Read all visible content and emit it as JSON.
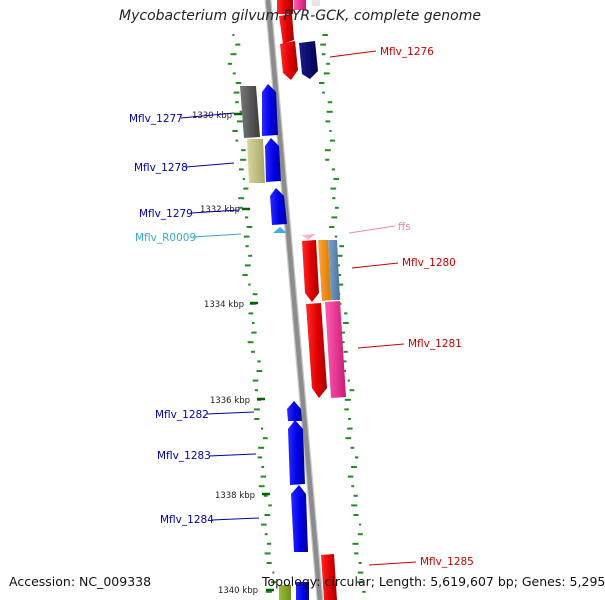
{
  "title": "Mycobacterium gilvum PYR-GCK, complete genome",
  "accession": "Accession: NC_009338",
  "topology": "Topology: circular; Length: 5,619,607 bp; Genes: 5,295",
  "ticks": [
    "1330 kbp",
    "1332 kbp",
    "1334 kbp",
    "1336 kbp",
    "1338 kbp",
    "1340 kbp"
  ],
  "genes": [
    {
      "label": "Mflv_1276",
      "color": "#cc0000",
      "strand": "+"
    },
    {
      "label": "Mflv_1277",
      "color": "#0000aa",
      "strand": "-"
    },
    {
      "label": "Mflv_1278",
      "color": "#0000aa",
      "strand": "-"
    },
    {
      "label": "Mflv_1279",
      "color": "#0000aa",
      "strand": "-"
    },
    {
      "label": "Mflv_R0009",
      "color": "#33aacc",
      "strand": "-"
    },
    {
      "label": "ffs",
      "color": "#ee88aa",
      "strand": "+"
    },
    {
      "label": "Mflv_1280",
      "color": "#cc0000",
      "strand": "+"
    },
    {
      "label": "Mflv_1281",
      "color": "#cc0000",
      "strand": "+"
    },
    {
      "label": "Mflv_1282",
      "color": "#0000aa",
      "strand": "-"
    },
    {
      "label": "Mflv_1283",
      "color": "#0000aa",
      "strand": "-"
    },
    {
      "label": "Mflv_1284",
      "color": "#0000aa",
      "strand": "-"
    },
    {
      "label": "Mflv_1285",
      "color": "#cc0000",
      "strand": "+"
    }
  ],
  "colors": {
    "forward_cds": "#ff0000",
    "reverse_cds": "#0000ee",
    "backbone": "#8c8c8c",
    "gc_skew": "#228b22",
    "rna_forward": "#ff88c0",
    "rna_reverse": "#44aaee"
  }
}
